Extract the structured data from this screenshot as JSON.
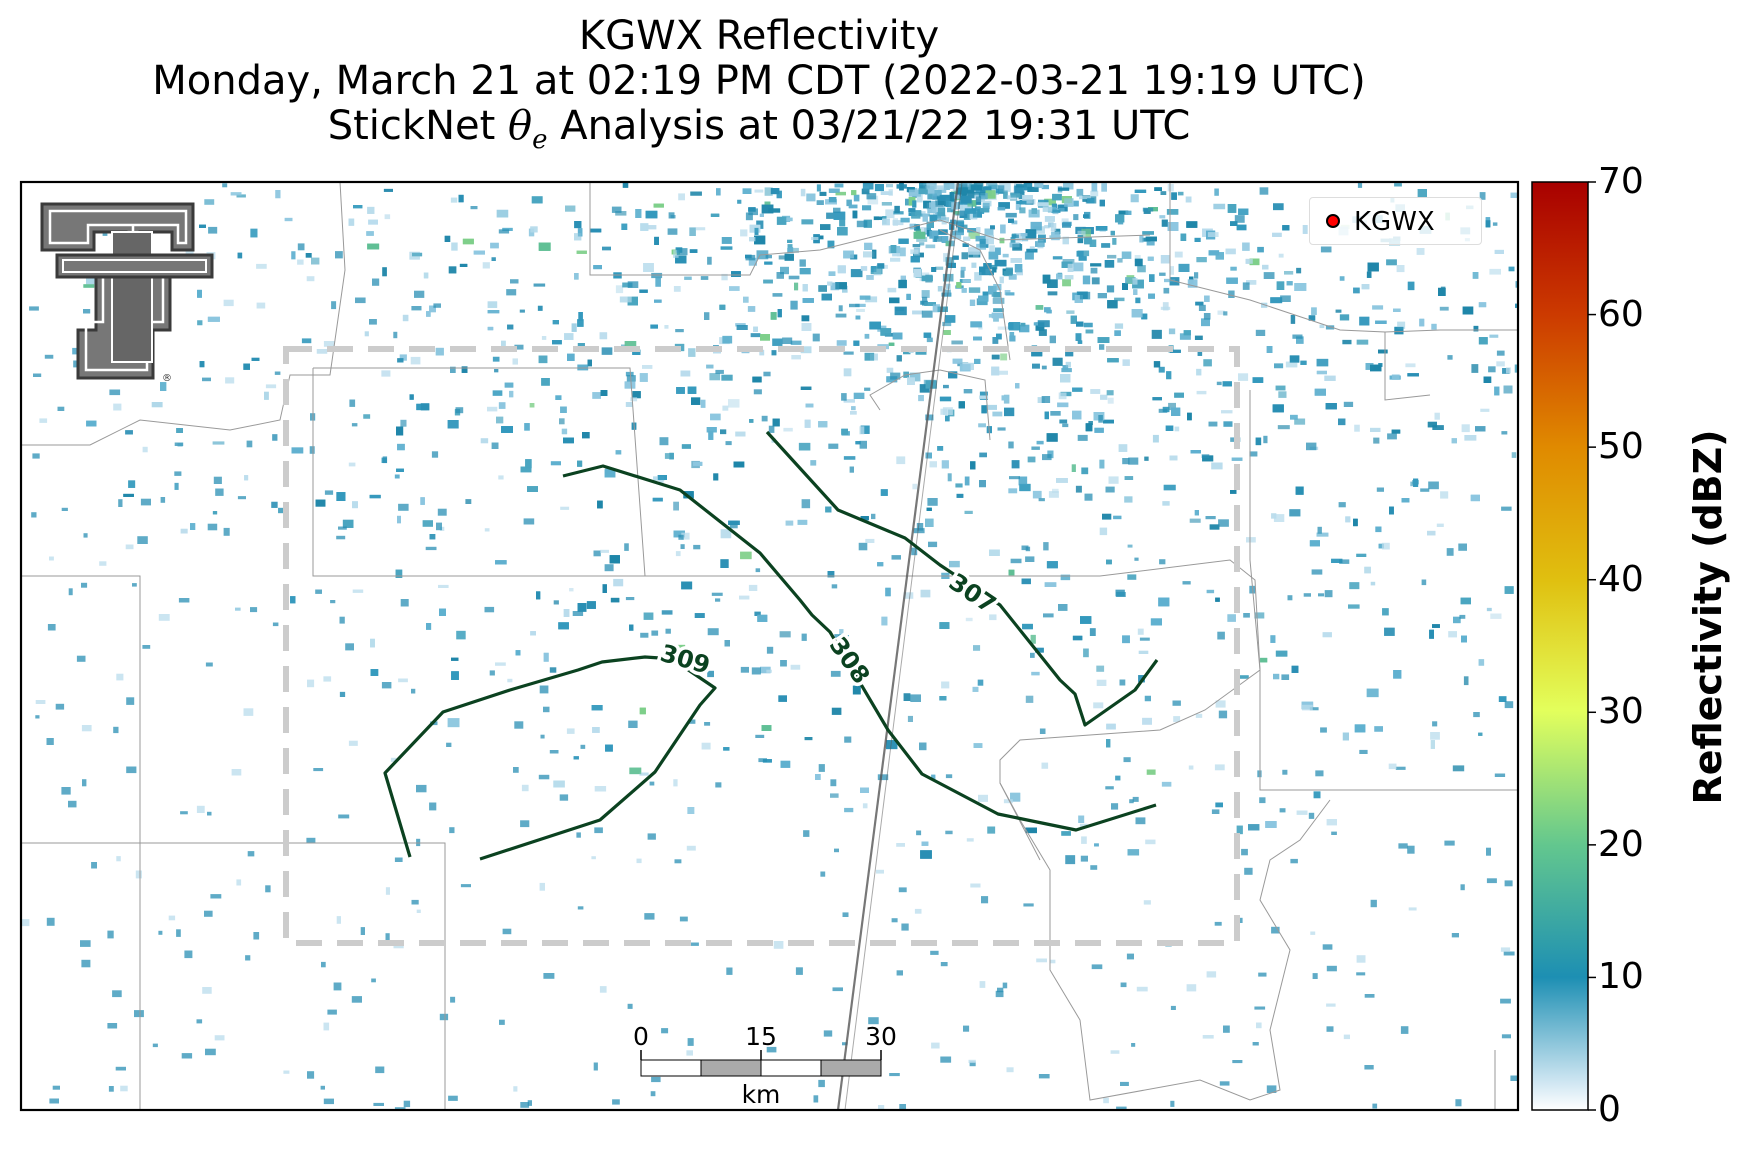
{
  "title": {
    "line1": "KGWX Reflectivity",
    "line2": "Monday, March 21 at 02:19 PM CDT (2022-03-21 19:19 UTC)",
    "line3_prefix": "StickNet ",
    "line3_symbol": "θ",
    "line3_subscript": "e",
    "line3_suffix": " Analysis at 03/21/22 19:31 UTC"
  },
  "legend": {
    "label": "KGWX",
    "marker_color": "#ff0000"
  },
  "logo": {
    "name": "Texas Tech double-T logo",
    "mark": "®"
  },
  "colorbar": {
    "label": "Reflectivity (dBZ)",
    "ticks": [
      "0",
      "10",
      "20",
      "30",
      "40",
      "50",
      "60",
      "70"
    ],
    "min": 0,
    "max": 70,
    "colors": [
      "#ffffff",
      "#1d8fb3",
      "#63c78e",
      "#e3ff5c",
      "#e0c010",
      "#e08a00",
      "#cc3a00",
      "#a80000"
    ]
  },
  "contours": [
    {
      "label": "307",
      "color": "#0b4220"
    },
    {
      "label": "308",
      "color": "#0b4220"
    },
    {
      "label": "309",
      "color": "#0b4220"
    }
  ],
  "scalebar": {
    "ticks": [
      "0",
      "15",
      "30"
    ],
    "unit": "km"
  },
  "colors": {
    "analysis_box": "#cccccc",
    "county_lines": "#999999",
    "radar_echo": "#2a8fb4"
  }
}
